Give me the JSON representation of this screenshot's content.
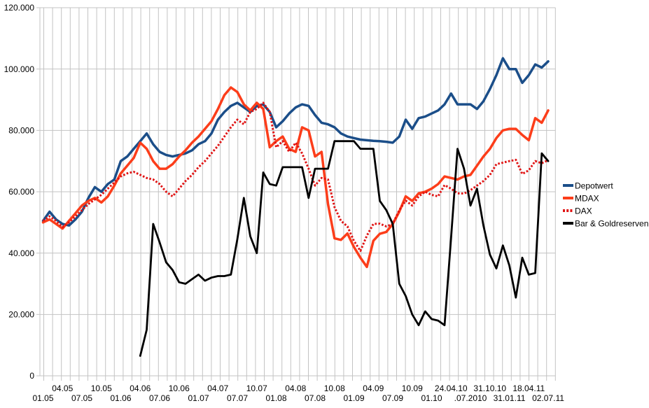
{
  "chart_data": {
    "type": "line",
    "title": "",
    "xlabel": "",
    "ylabel": "",
    "x_unit": "months from 01.2005 to 07.2011, one value per month, axis labels every 3 months",
    "y_axis": {
      "min": 0,
      "max": 120000,
      "step": 20000,
      "tick_labels": [
        "120.000",
        "100.000",
        "80.000",
        "60.000",
        "40.000",
        "20.000",
        "0"
      ]
    },
    "x_axis": {
      "tick_labels": [
        "01.05",
        "04.05",
        "07.05",
        "10.05",
        "01.06",
        "04.06",
        "07.06",
        "10.06",
        "01.07",
        "04.07",
        "07.07",
        "10.07",
        "01.08",
        "04.08",
        "07.08",
        "10.08",
        "01.09",
        "04.09",
        "07.09",
        "10.09",
        "01.10",
        "24.04.10",
        ".07.2010",
        "31.10.10",
        "31.01.11",
        "18.04.11",
        "02.07.11"
      ],
      "label_rows": "alternating: even-index labels on lower row, odd-index labels on upper row"
    },
    "grid": {
      "vertical_lines": 59,
      "horizontal_lines": 7,
      "color": "#c3c3c3"
    },
    "legend": {
      "position": "right"
    },
    "series": [
      {
        "name": "Depotwert",
        "color": "#1b4e89",
        "style": "solid",
        "width": 3.5,
        "values": [
          50500,
          53500,
          51000,
          49500,
          49000,
          51000,
          53500,
          58000,
          61500,
          60000,
          62500,
          64000,
          70000,
          71500,
          74000,
          76500,
          79000,
          75500,
          73000,
          72000,
          71500,
          72000,
          72500,
          73500,
          75500,
          76500,
          79000,
          83500,
          86000,
          88000,
          89000,
          87500,
          86000,
          88000,
          88500,
          86000,
          81000,
          83000,
          85500,
          87500,
          88500,
          88000,
          85000,
          82500,
          82000,
          81000,
          79000,
          78000,
          77500,
          77000,
          76800,
          76600,
          76500,
          76300,
          76000,
          78000,
          83500,
          80500,
          84000,
          84500,
          85500,
          86500,
          88500,
          92000,
          88500,
          88500,
          88500,
          87000,
          89500,
          93500,
          98000,
          103500,
          100000,
          100000,
          95500,
          98000,
          101500,
          100500,
          102500
        ]
      },
      {
        "name": "MDAX",
        "color": "#fc3d1a",
        "style": "solid",
        "width": 3.5,
        "values": [
          50000,
          51000,
          49500,
          48000,
          50500,
          53000,
          55500,
          57000,
          58000,
          56500,
          58500,
          62000,
          66000,
          68500,
          71000,
          76000,
          74000,
          70000,
          67500,
          67500,
          69000,
          71500,
          73500,
          76000,
          78000,
          80500,
          83000,
          87000,
          91500,
          94000,
          92500,
          88500,
          86500,
          89000,
          87000,
          74500,
          76500,
          78000,
          74000,
          73000,
          81000,
          80000,
          71500,
          73000,
          56000,
          44800,
          44300,
          46400,
          42000,
          38500,
          35500,
          44000,
          46300,
          46900,
          49500,
          53500,
          58500,
          57000,
          59500,
          60000,
          61000,
          62500,
          65000,
          64500,
          64000,
          65000,
          65500,
          68500,
          71500,
          74000,
          77500,
          80000,
          80500,
          80500,
          78500,
          76800,
          84000,
          82500,
          86500
        ]
      },
      {
        "name": "DAX",
        "color": "#e01414",
        "style": "dotted",
        "width": 3,
        "values": [
          50500,
          52000,
          50500,
          48500,
          50000,
          52000,
          54000,
          56000,
          57500,
          59000,
          61000,
          63000,
          65000,
          66000,
          66500,
          65500,
          64500,
          64000,
          62500,
          60000,
          58500,
          61000,
          63500,
          65500,
          68000,
          70000,
          72500,
          75000,
          78000,
          81000,
          83500,
          82000,
          86000,
          87000,
          89000,
          86000,
          74500,
          76500,
          73000,
          76000,
          72500,
          67500,
          62000,
          64500,
          64000,
          55000,
          50500,
          48700,
          44000,
          40700,
          45700,
          49500,
          49600,
          48700,
          49500,
          54000,
          57100,
          55500,
          58500,
          60000,
          59000,
          58500,
          62200,
          61000,
          59500,
          59400,
          60500,
          62000,
          63500,
          65500,
          69000,
          69500,
          70000,
          70400,
          65800,
          67000,
          70000,
          69300,
          70300
        ]
      },
      {
        "name": "Bar & Goldreserven",
        "color": "#000000",
        "style": "solid",
        "width": 2.8,
        "values": [
          null,
          null,
          null,
          null,
          null,
          null,
          null,
          null,
          null,
          null,
          null,
          null,
          null,
          null,
          null,
          6500,
          15000,
          49500,
          43500,
          37000,
          34500,
          30500,
          30000,
          31500,
          33000,
          31000,
          32000,
          32500,
          32500,
          33000,
          44500,
          58000,
          45500,
          40000,
          66300,
          62500,
          62000,
          68000,
          68000,
          68000,
          68000,
          58000,
          67500,
          67500,
          67500,
          76500,
          76500,
          76500,
          76500,
          74000,
          74000,
          74000,
          57000,
          54000,
          49500,
          30000,
          26000,
          20000,
          16500,
          21000,
          18500,
          18000,
          16500,
          45000,
          74000,
          67500,
          55500,
          61000,
          49000,
          39500,
          35000,
          42500,
          36000,
          25500,
          38500,
          33000,
          33500,
          72500,
          70000
        ]
      }
    ]
  },
  "legend": {
    "entries": [
      {
        "label": "Depotwert"
      },
      {
        "label": "MDAX"
      },
      {
        "label": "DAX"
      },
      {
        "label": "Bar & Goldreserven"
      }
    ]
  },
  "colors": {
    "background": "#ffffff",
    "gridline": "#c3c3c3",
    "axis_line": "#b0b0b0",
    "text": "#000000"
  }
}
